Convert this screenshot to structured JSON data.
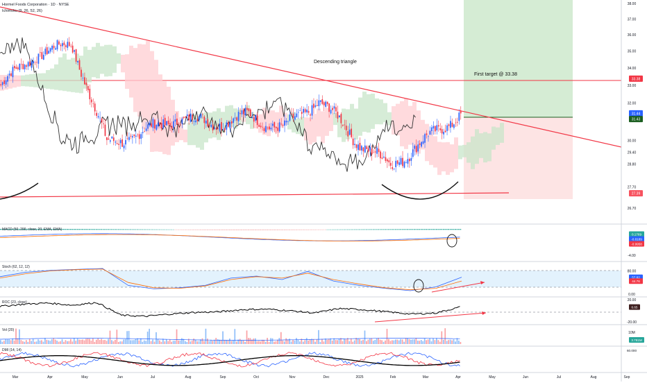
{
  "header": {
    "symbol_title": "Hormel Foods Corporation · 1D · NYSE",
    "ichimoku_label": "Ichimoku (9, 26, 52, 26)"
  },
  "annotations": {
    "pattern": "Descending triangle",
    "target": "First target @ 33.38"
  },
  "colors": {
    "candle_up": "#2962ff",
    "candle_down": "#f23645",
    "trendline": "#f23645",
    "cloud_bull": "#c8e6c9",
    "cloud_bear": "#ffcdd2",
    "target_zone": "#d5ecd4",
    "stop_zone": "#fde4e4",
    "macd_line": "#2962ff",
    "signal_line": "#ff6d00",
    "lagging_span": "#333333"
  },
  "chart_data": [
    {
      "id": "price",
      "type": "candlestick",
      "title": "Hormel Foods Corporation · 1D · NYSE",
      "y_scale": "log",
      "ylim": [
        26.4,
        38.2
      ],
      "y_ticks": [
        "38.00",
        "37.00",
        "36.00",
        "35.00",
        "34.00",
        "33.00",
        "32.00",
        "30.00",
        "29.40",
        "28.80",
        "27.70",
        "26.70"
      ],
      "x_ticks": [
        "Mar",
        "Apr",
        "May",
        "Jun",
        "Jul",
        "Aug",
        "Sep",
        "Oct",
        "Nov",
        "Dec",
        "2025",
        "Feb",
        "Mar",
        "Apr",
        "May",
        "Jun",
        "Jul",
        "Aug",
        "Sep"
      ],
      "monthly_closes": [
        {
          "month": "Mar",
          "close": 33.0
        },
        {
          "month": "Apr",
          "close": 34.8
        },
        {
          "month": "May",
          "close": 35.4
        },
        {
          "month": "Jun",
          "close": 29.8
        },
        {
          "month": "Jul",
          "close": 30.4
        },
        {
          "month": "Aug",
          "close": 31.2
        },
        {
          "month": "Sep",
          "close": 30.9
        },
        {
          "month": "Oct",
          "close": 31.3
        },
        {
          "month": "Nov",
          "close": 30.6
        },
        {
          "month": "Dec",
          "close": 32.2
        },
        {
          "month": "2025",
          "close": 30.1
        },
        {
          "month": "Feb",
          "close": 28.7
        },
        {
          "month": "Mar",
          "close": 30.0
        },
        {
          "month": "Apr",
          "close": 31.44
        }
      ],
      "levels": {
        "resistance": 33.38,
        "support": 27.39,
        "current_price": 31.44,
        "second_price": 31.43,
        "target": 33.38,
        "stop": 27.39
      },
      "price_labels": [
        "33.38",
        "31.44",
        "31.43",
        "27.39"
      ]
    },
    {
      "id": "macd",
      "type": "line",
      "title": "MACD (50, 200, close, 20, EMA, EMA)",
      "ylim": [
        -4.0,
        1.0
      ],
      "y_ticks": [
        "-4.00"
      ],
      "values": {
        "histogram": 0.1769,
        "macd": -0.8189,
        "signal": -0.9958
      },
      "value_labels": [
        "0.1769",
        "-0.8189",
        "-0.9958"
      ]
    },
    {
      "id": "stoch",
      "type": "line",
      "title": "Stoch (62, 12, 12)",
      "ylim": [
        0,
        100
      ],
      "y_ticks": [
        "80.00",
        "0.00"
      ],
      "values": {
        "k": 57.82,
        "d": 44.76
      },
      "value_labels": [
        "57.82",
        "44.76"
      ],
      "series": [
        {
          "name": "%K",
          "values": [
            60,
            75,
            82,
            85,
            88,
            30,
            18,
            22,
            30,
            55,
            62,
            50,
            78,
            45,
            30,
            20,
            12,
            25,
            58
          ]
        },
        {
          "name": "%D",
          "values": [
            55,
            70,
            80,
            84,
            86,
            40,
            22,
            20,
            28,
            50,
            60,
            55,
            72,
            50,
            35,
            22,
            15,
            20,
            45
          ]
        }
      ]
    },
    {
      "id": "roc",
      "type": "line",
      "title": "ROC (23, close)",
      "ylim": [
        -20,
        20
      ],
      "y_ticks": [
        "20.00",
        "-20.00"
      ],
      "values": {
        "roc": 6.65
      },
      "value_labels": [
        "6.65"
      ],
      "series": [
        {
          "name": "ROC",
          "values": [
            8,
            12,
            14,
            10,
            15,
            -8,
            -10,
            -6,
            -3,
            -2,
            2,
            3,
            0,
            -4,
            4,
            2,
            -2,
            -6,
            -4,
            6.65
          ]
        }
      ]
    },
    {
      "id": "volume",
      "type": "bar",
      "title": "Vol (20)",
      "y_ticks": [
        "10M"
      ],
      "values": {
        "volume": "3.781M"
      },
      "value_labels": [
        "3.781M"
      ]
    },
    {
      "id": "dmi",
      "type": "line",
      "title": "DMI (14, 14)",
      "y_ticks": [
        "60.000"
      ],
      "values": {},
      "value_labels": []
    }
  ]
}
